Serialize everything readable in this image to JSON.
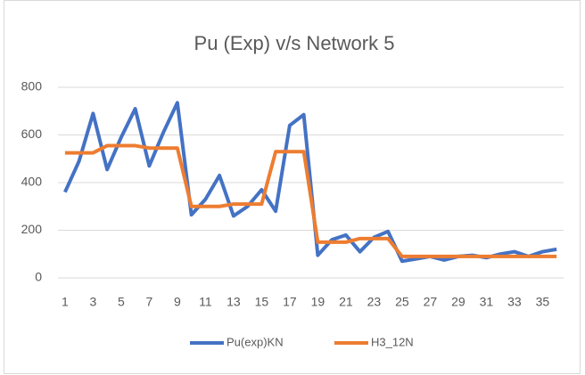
{
  "chart_data": {
    "type": "line",
    "title": "Pu (Exp) v/s Network 5",
    "categories": [
      "1",
      null,
      "3",
      null,
      "5",
      null,
      "7",
      null,
      "9",
      null,
      "11",
      null,
      "13",
      null,
      "15",
      null,
      "17",
      null,
      "19",
      null,
      "21",
      null,
      "23",
      null,
      "25",
      null,
      "27",
      null,
      "29",
      null,
      "31",
      null,
      "33",
      null,
      "35",
      null
    ],
    "series": [
      {
        "name": "Pu(exp)KN",
        "color": "#4472c4",
        "values": [
          360,
          490,
          690,
          455,
          590,
          710,
          470,
          610,
          735,
          265,
          330,
          430,
          260,
          300,
          370,
          280,
          640,
          685,
          95,
          160,
          180,
          110,
          170,
          195,
          70,
          80,
          90,
          75,
          90,
          95,
          85,
          100,
          110,
          90,
          110,
          120
        ]
      },
      {
        "name": "H3_12N",
        "color": "#ed7d31",
        "values": [
          525,
          525,
          525,
          555,
          555,
          555,
          545,
          545,
          545,
          300,
          300,
          300,
          310,
          310,
          310,
          530,
          530,
          530,
          150,
          150,
          150,
          165,
          165,
          165,
          90,
          90,
          90,
          90,
          90,
          90,
          90,
          90,
          90,
          90,
          90,
          90
        ]
      }
    ],
    "ylim": [
      0,
      800
    ],
    "yticks": [
      0,
      200,
      400,
      600,
      800
    ],
    "grid": true,
    "legend": "bottom"
  }
}
